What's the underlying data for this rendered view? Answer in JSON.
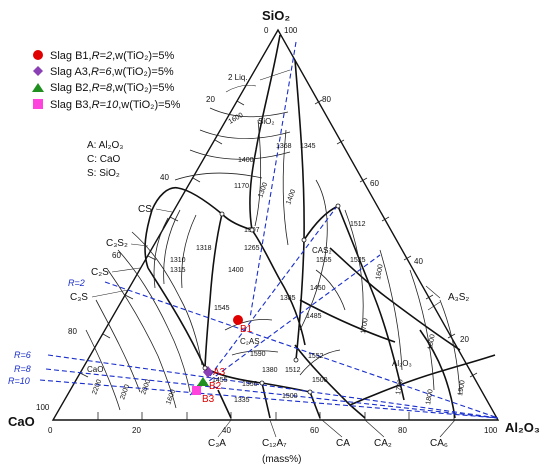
{
  "axes": {
    "top": "SiO₂",
    "left": "CaO",
    "right": "Al₂O₃",
    "unit": "(mass%)"
  },
  "legend": [
    {
      "label": "Slag B1,",
      "r": "R=2",
      "w": ",w(TiO₂)=5%",
      "color": "#e00000",
      "marker": "circle"
    },
    {
      "label": "Slag A3,",
      "r": "R=6",
      "w": ",w(TiO₂)=5%",
      "color": "#8b3fb4",
      "marker": "diamond"
    },
    {
      "label": "Slag B2,",
      "r": "R=8",
      "w": ",w(TiO₂)=5%",
      "color": "#1f8f1f",
      "marker": "triangle"
    },
    {
      "label": "Slag B3,",
      "r": "R=10",
      "w": ",w(TiO₂)=5%",
      "color": "#ff44dd",
      "marker": "square"
    }
  ],
  "key": [
    "A: Al₂O₃",
    "C: CaO",
    "S: SiO₂"
  ],
  "ticks": {
    "left_side": [
      "0",
      "20",
      "40",
      "60",
      "80",
      "100"
    ],
    "right_side": [
      "100",
      "80",
      "60",
      "40",
      "20",
      "0"
    ],
    "bottom": [
      "0",
      "20",
      "40",
      "60",
      "80",
      "100"
    ],
    "apex_top": [
      "0",
      "100"
    ]
  },
  "phases": {
    "L2": "2 Liq.",
    "SiO2": "SiO₂",
    "CS": "CS",
    "C3S2": "C₃S₂",
    "C2S": "C₂S",
    "C3S": "C₃S",
    "CaO": "CaO",
    "CAS2": "CAS₂",
    "A3S2": "A₃S₂",
    "C2AS": "C₂AS",
    "Al2O3": "Al₂O₃",
    "C3A": "C₃A",
    "C12A7": "C₁₂A₇",
    "CA": "CA",
    "CA2": "CA₂",
    "CA6": "CA₆"
  },
  "isotherms": [
    "1600",
    "1400",
    "1368",
    "1345",
    "1170",
    "1300",
    "1400",
    "1307",
    "1265",
    "1318",
    "1310",
    "1315",
    "1400",
    "1555",
    "1512",
    "1525",
    "1385",
    "1450",
    "1600",
    "1485",
    "1545",
    "1590",
    "1800",
    "1700",
    "1552",
    "1500",
    "1380",
    "1512",
    "1455",
    "1350",
    "1335",
    "1500",
    "1700",
    "1800",
    "2000",
    "1900",
    "2200",
    "2000",
    "1600"
  ],
  "ratio_lines": [
    "R=2",
    "R=6",
    "R=8",
    "R=10"
  ],
  "points": [
    "B1",
    "A3",
    "B2",
    "B3"
  ]
}
